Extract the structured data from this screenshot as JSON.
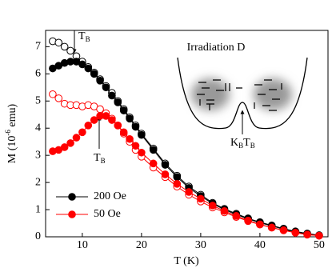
{
  "chart_data": {
    "type": "line",
    "xlabel": "T (K)",
    "ylabel": {
      "pre": "M (10",
      "sup": "-6",
      "post": " emu)"
    },
    "x": [
      5,
      6,
      7,
      8,
      9,
      10,
      11,
      12,
      13,
      14,
      15,
      16,
      17,
      18,
      19,
      20,
      22,
      24,
      26,
      28,
      30,
      32,
      34,
      36,
      38,
      40,
      42,
      44,
      46,
      48,
      50
    ],
    "series": [
      {
        "name": "200 Oe",
        "color": "#000000",
        "values": [
          6.2,
          6.3,
          6.4,
          6.45,
          6.45,
          6.35,
          6.2,
          6.0,
          5.75,
          5.5,
          5.2,
          4.95,
          4.65,
          4.35,
          4.05,
          3.75,
          3.2,
          2.65,
          2.2,
          1.8,
          1.5,
          1.22,
          1.0,
          0.82,
          0.66,
          0.52,
          0.4,
          0.28,
          0.18,
          0.1,
          0.05
        ],
        "fc_values": [
          7.2,
          7.15,
          7.0,
          6.85,
          6.65,
          6.45,
          6.25,
          6.05,
          5.8,
          5.55,
          5.3,
          5.0,
          4.7,
          4.4,
          4.1,
          3.8,
          3.25,
          2.7,
          2.25,
          1.85,
          1.55,
          1.25,
          1.03,
          0.85,
          0.68,
          0.54,
          0.42,
          0.3,
          0.2,
          0.12,
          0.06
        ]
      },
      {
        "name": "50 Oe",
        "color": "#ff0000",
        "values": [
          3.15,
          3.2,
          3.3,
          3.45,
          3.65,
          3.85,
          4.1,
          4.3,
          4.45,
          4.45,
          4.3,
          4.1,
          3.85,
          3.6,
          3.35,
          3.1,
          2.7,
          2.3,
          1.95,
          1.65,
          1.4,
          1.15,
          0.95,
          0.77,
          0.6,
          0.46,
          0.34,
          0.24,
          0.15,
          0.08,
          0.04
        ],
        "fc_values": [
          5.25,
          5.1,
          4.9,
          4.85,
          4.85,
          4.8,
          4.85,
          4.8,
          4.7,
          4.55,
          4.35,
          4.1,
          3.8,
          3.5,
          3.2,
          2.95,
          2.55,
          2.2,
          1.85,
          1.55,
          1.3,
          1.08,
          0.9,
          0.73,
          0.58,
          0.45,
          0.34,
          0.24,
          0.15,
          0.08,
          0.04
        ]
      }
    ],
    "xlim": [
      3.8,
      51.5
    ],
    "ylim": [
      0,
      7.6
    ],
    "xticks": [
      10,
      20,
      30,
      40,
      50
    ],
    "yticks": [
      0,
      1,
      2,
      3,
      4,
      5,
      6,
      7
    ],
    "annotations": [
      {
        "text": "T",
        "sub": "B"
      },
      {
        "text": "T",
        "sub": "B"
      }
    ],
    "inset": {
      "title": "Irradiation D",
      "label": [
        {
          "text": "K",
          "sub": "B"
        },
        {
          "text": "T",
          "sub": "B"
        }
      ]
    },
    "legend": "lower left"
  }
}
